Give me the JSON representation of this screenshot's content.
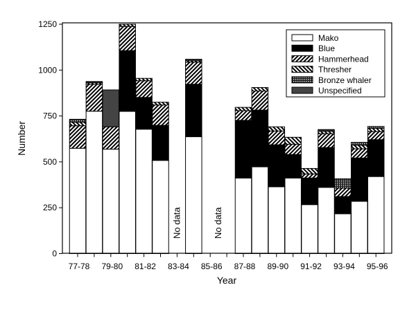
{
  "chart_data": {
    "type": "bar",
    "stacked": true,
    "title": "",
    "xlabel": "Year",
    "ylabel": "Number",
    "ylim": [
      0,
      1250
    ],
    "yticks": [
      0,
      250,
      500,
      750,
      1000,
      1250
    ],
    "grid": false,
    "legend_position": "top-right",
    "categories": [
      "77-78",
      "78-79",
      "79-80",
      "80-81",
      "81-82",
      "82-83",
      "83-84",
      "84-85",
      "85-86",
      "86-87",
      "87-88",
      "88-89",
      "89-90",
      "90-91",
      "91-92",
      "92-93",
      "93-94",
      "94-95",
      "95-96"
    ],
    "tick_labels": [
      "77-78",
      "79-80",
      "81-82",
      "83-84",
      "85-86",
      "87-88",
      "89-90",
      "91-92",
      "93-94",
      "95-96"
    ],
    "annotations": [
      {
        "text": "No data",
        "categories": [
          "83-84"
        ]
      },
      {
        "text": "No data",
        "categories": [
          "85-86",
          "86-87"
        ]
      }
    ],
    "series": [
      {
        "name": "Mako",
        "fill": "white",
        "values": [
          574,
          776,
          569,
          775,
          678,
          508,
          null,
          637,
          null,
          null,
          412,
          473,
          364,
          412,
          267,
          361,
          217,
          285,
          420
        ]
      },
      {
        "name": "Blue",
        "fill": "black",
        "values": [
          0,
          0,
          0,
          331,
          173,
          191,
          null,
          286,
          null,
          null,
          314,
          309,
          229,
          128,
          145,
          217,
          94,
          236,
          201
        ]
      },
      {
        "name": "Hammerhead",
        "fill": "forward-hatch",
        "values": [
          123,
          147,
          122,
          132,
          91,
          111,
          null,
          120,
          null,
          null,
          53,
          104,
          75,
          56,
          22,
          75,
          46,
          50,
          44
        ]
      },
      {
        "name": "Thresher",
        "fill": "back-hatch",
        "values": [
          19,
          8,
          0,
          12,
          13,
          15,
          null,
          8,
          null,
          null,
          18,
          19,
          23,
          38,
          30,
          13,
          0,
          20,
          18
        ]
      },
      {
        "name": "Bronze whaler",
        "fill": "crosshatch",
        "values": [
          16,
          7,
          0,
          0,
          0,
          0,
          null,
          8,
          null,
          null,
          0,
          0,
          0,
          0,
          0,
          10,
          51,
          15,
          10
        ]
      },
      {
        "name": "Unspecified",
        "fill": "dark-gray",
        "values": [
          0,
          0,
          201,
          0,
          0,
          0,
          null,
          0,
          null,
          null,
          0,
          0,
          0,
          0,
          0,
          0,
          0,
          0,
          0
        ]
      }
    ]
  }
}
